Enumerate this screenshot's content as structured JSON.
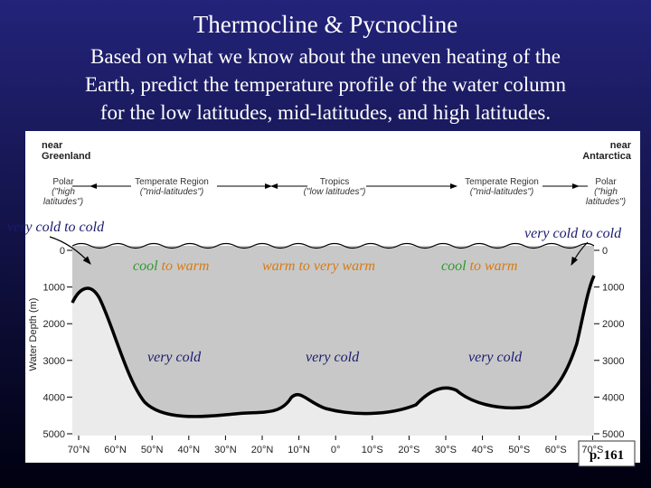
{
  "header": {
    "title": "Thermocline & Pycnocline",
    "subtitle_lines": [
      "Based on what we know about the uneven heating of the",
      "Earth, predict the temperature profile of the water column",
      "for the low latitudes, mid-latitudes, and high latitudes."
    ]
  },
  "diagram": {
    "left_label": [
      "near",
      "Greenland"
    ],
    "right_label": [
      "near",
      "Antarctica"
    ],
    "regions": [
      {
        "name": "Polar",
        "sub": [
          "(\"high",
          "latitudes\")"
        ]
      },
      {
        "name": "Temperate Region",
        "sub": [
          "(\"mid-latitudes\")"
        ]
      },
      {
        "name": "Tropics",
        "sub": [
          "(\"low latitudes\")"
        ]
      },
      {
        "name": "Temperate Region",
        "sub": [
          "(\"mid-latitudes\")"
        ]
      },
      {
        "name": "Polar",
        "sub": [
          "(\"high",
          "latitudes\")"
        ]
      }
    ],
    "depth_axis_label": "Water Depth (m)",
    "depth_ticks": [
      "0",
      "1000",
      "2000",
      "3000",
      "4000",
      "5000"
    ],
    "latitude_ticks": [
      "70°N",
      "60°N",
      "50°N",
      "40°N",
      "30°N",
      "20°N",
      "10°N",
      "0°",
      "10°S",
      "20°S",
      "30°S",
      "40°S",
      "50°S",
      "60°S",
      "70°S"
    ]
  },
  "annotations": [
    {
      "parts": [
        {
          "text": "very cold to cold",
          "color": "#1a1a6e"
        }
      ]
    },
    {
      "parts": [
        {
          "text": "very cold to cold",
          "color": "#1a1a6e"
        }
      ]
    },
    {
      "parts": [
        {
          "text": "cool",
          "color": "#2e9a2e"
        },
        {
          "text": " to warm",
          "color": "#d87a10"
        }
      ]
    },
    {
      "parts": [
        {
          "text": "warm to very warm",
          "color": "#d87a10"
        }
      ]
    },
    {
      "parts": [
        {
          "text": "cool",
          "color": "#2e9a2e"
        },
        {
          "text": " to warm",
          "color": "#d87a10"
        }
      ]
    },
    {
      "parts": [
        {
          "text": "very cold",
          "color": "#1a1a6e"
        }
      ]
    },
    {
      "parts": [
        {
          "text": "very cold",
          "color": "#1a1a6e"
        }
      ]
    },
    {
      "parts": [
        {
          "text": "very cold",
          "color": "#1a1a6e"
        }
      ]
    }
  ],
  "page_ref": "p. 161"
}
